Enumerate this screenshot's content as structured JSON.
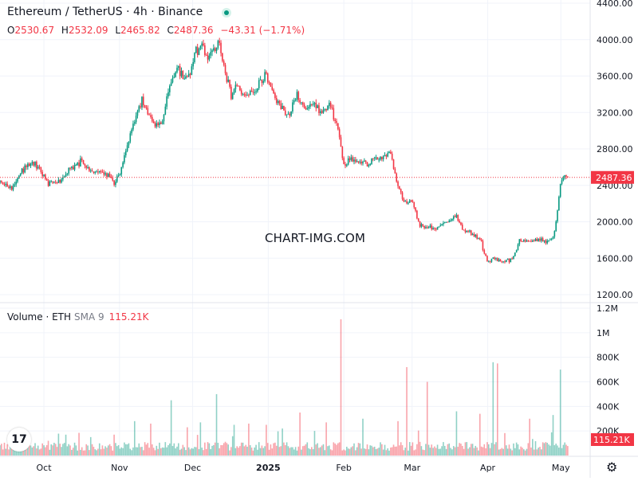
{
  "header": {
    "title": "Ethereum / TetherUS · 4h · Binance",
    "status_color": "#089981"
  },
  "ohlc": {
    "o_label": "O",
    "o": "2530.67",
    "h_label": "H",
    "h": "2532.09",
    "l_label": "L",
    "l": "2465.82",
    "c_label": "C",
    "c": "2487.36",
    "change": "−43.31 (−1.71%)"
  },
  "volume_legend": {
    "label": "Volume · ETH",
    "sma": "SMA 9",
    "value": "115.21K"
  },
  "watermark": "CHART-IMG.COM",
  "logo_text": "17",
  "chart_data": [
    {
      "type": "candlestick",
      "title": "Ethereum / TetherUS · 4h · Binance",
      "y_ticks": [
        "4400.00",
        "4000.00",
        "3600.00",
        "3200.00",
        "2800.00",
        "2400.00",
        "2000.00",
        "1600.00",
        "1200.00"
      ],
      "y_tick_values": [
        4400,
        4000,
        3600,
        3200,
        2800,
        2400,
        2000,
        1600,
        1200
      ],
      "ylim": [
        1170,
        4400
      ],
      "x_ticks": [
        "Oct",
        "Nov",
        "Dec",
        "2025",
        "Feb",
        "Mar",
        "Apr",
        "May"
      ],
      "x_tick_positions": [
        1,
        32,
        62,
        93,
        124,
        152,
        183,
        213
      ],
      "x_range_days": [
        -17,
        225
      ],
      "last_price": 2487.36,
      "last_price_label": "2487.36",
      "up_color": "#089981",
      "down_color": "#f23645",
      "series_close": [
        [
          -17,
          2430
        ],
        [
          -12,
          2360
        ],
        [
          -8,
          2560
        ],
        [
          -4,
          2640
        ],
        [
          0,
          2570
        ],
        [
          3,
          2420
        ],
        [
          8,
          2450
        ],
        [
          12,
          2600
        ],
        [
          17,
          2680
        ],
        [
          20,
          2550
        ],
        [
          24,
          2540
        ],
        [
          28,
          2500
        ],
        [
          30,
          2430
        ],
        [
          32,
          2510
        ],
        [
          35,
          2800
        ],
        [
          38,
          3100
        ],
        [
          41,
          3350
        ],
        [
          44,
          3150
        ],
        [
          47,
          3050
        ],
        [
          50,
          3140
        ],
        [
          53,
          3550
        ],
        [
          56,
          3700
        ],
        [
          58,
          3560
        ],
        [
          61,
          3630
        ],
        [
          63,
          3870
        ],
        [
          66,
          3960
        ],
        [
          68,
          3780
        ],
        [
          70,
          3870
        ],
        [
          73,
          3950
        ],
        [
          75,
          3720
        ],
        [
          78,
          3350
        ],
        [
          80,
          3470
        ],
        [
          84,
          3380
        ],
        [
          88,
          3450
        ],
        [
          92,
          3640
        ],
        [
          95,
          3400
        ],
        [
          98,
          3250
        ],
        [
          101,
          3150
        ],
        [
          105,
          3400
        ],
        [
          108,
          3230
        ],
        [
          112,
          3300
        ],
        [
          115,
          3200
        ],
        [
          118,
          3300
        ],
        [
          121,
          3100
        ],
        [
          124,
          2620
        ],
        [
          127,
          2700
        ],
        [
          130,
          2650
        ],
        [
          133,
          2620
        ],
        [
          136,
          2700
        ],
        [
          139,
          2690
        ],
        [
          143,
          2760
        ],
        [
          146,
          2400
        ],
        [
          149,
          2200
        ],
        [
          152,
          2250
        ],
        [
          155,
          1960
        ],
        [
          158,
          1950
        ],
        [
          162,
          1910
        ],
        [
          166,
          2010
        ],
        [
          170,
          2050
        ],
        [
          173,
          1900
        ],
        [
          176,
          1870
        ],
        [
          180,
          1790
        ],
        [
          183,
          1550
        ],
        [
          186,
          1600
        ],
        [
          189,
          1560
        ],
        [
          193,
          1590
        ],
        [
          196,
          1780
        ],
        [
          200,
          1790
        ],
        [
          204,
          1800
        ],
        [
          207,
          1780
        ],
        [
          210,
          1820
        ],
        [
          212,
          2200
        ],
        [
          213,
          2450
        ],
        [
          215,
          2530
        ],
        [
          216,
          2487
        ]
      ]
    },
    {
      "type": "bar",
      "title": "Volume · ETH",
      "y_ticks": [
        "1.2M",
        "1M",
        "800K",
        "600K",
        "400K",
        "200K"
      ],
      "y_tick_values": [
        1200000,
        1000000,
        800000,
        600000,
        400000,
        200000
      ],
      "ylim": [
        0,
        1200000
      ],
      "last_value_label": "115.21K",
      "sma_label": "SMA 9",
      "spikes": [
        [
          -12,
          140000
        ],
        [
          -5,
          150000
        ],
        [
          3,
          120000
        ],
        [
          10,
          170000
        ],
        [
          20,
          150000
        ],
        [
          30,
          170000
        ],
        [
          38,
          280000
        ],
        [
          45,
          260000
        ],
        [
          53,
          450000
        ],
        [
          60,
          230000
        ],
        [
          65,
          270000
        ],
        [
          72,
          500000
        ],
        [
          79,
          250000
        ],
        [
          85,
          260000
        ],
        [
          92,
          250000
        ],
        [
          99,
          220000
        ],
        [
          106,
          350000
        ],
        [
          117,
          270000
        ],
        [
          123,
          1110000
        ],
        [
          132,
          300000
        ],
        [
          146,
          280000
        ],
        [
          150,
          720000
        ],
        [
          158,
          600000
        ],
        [
          170,
          360000
        ],
        [
          180,
          340000
        ],
        [
          185,
          760000
        ],
        [
          187,
          750000
        ],
        [
          200,
          300000
        ],
        [
          210,
          330000
        ],
        [
          213,
          700000
        ]
      ]
    }
  ]
}
